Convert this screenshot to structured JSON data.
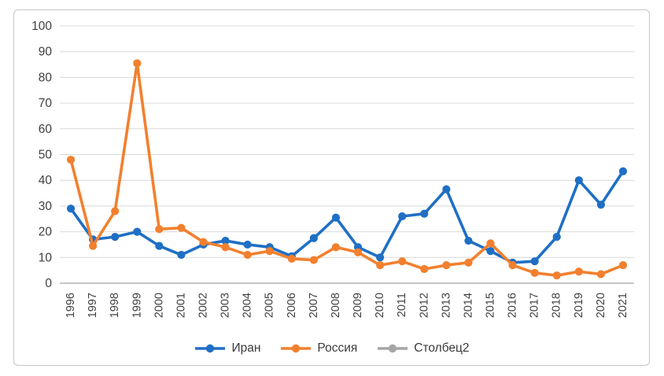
{
  "chart_data": {
    "type": "line",
    "title": "",
    "xlabel": "",
    "ylabel": "",
    "x": [
      "1996",
      "1997",
      "1998",
      "1999",
      "2000",
      "2001",
      "2002",
      "2003",
      "2004",
      "2005",
      "2006",
      "2007",
      "2008",
      "2009",
      "2010",
      "2011",
      "2012",
      "2013",
      "2014",
      "2015",
      "2016",
      "2017",
      "2018",
      "2019",
      "2020",
      "2021"
    ],
    "series": [
      {
        "name": "Иран",
        "color": "#1f6fc5",
        "values": [
          29,
          17,
          18,
          20,
          14.5,
          11,
          15,
          16.5,
          15,
          14,
          10.5,
          17.5,
          25.5,
          14,
          10,
          26,
          27,
          36.5,
          16.5,
          12.5,
          8,
          8.5,
          18,
          40,
          30.5,
          43.5
        ]
      },
      {
        "name": "Россия",
        "color": "#f2802e",
        "values": [
          48,
          14.5,
          28,
          85.5,
          21,
          21.5,
          16,
          14,
          11,
          12.5,
          9.5,
          9,
          14,
          12,
          7,
          8.5,
          5.5,
          7,
          8,
          15.5,
          7,
          4,
          3,
          4.5,
          3.5,
          7
        ]
      },
      {
        "name": "Столбец2",
        "color": "#a6a6a6",
        "values": []
      }
    ],
    "ylim": [
      0,
      100
    ],
    "yticks": [
      0,
      10,
      20,
      30,
      40,
      50,
      60,
      70,
      80,
      90,
      100
    ],
    "grid": true,
    "legend_position": "bottom",
    "colors": {
      "gridline": "#d9d9d9",
      "axis_line": "#b3b3b3",
      "tick_text": "#3f3f3f",
      "frame_border": "#c6c6c6"
    }
  }
}
